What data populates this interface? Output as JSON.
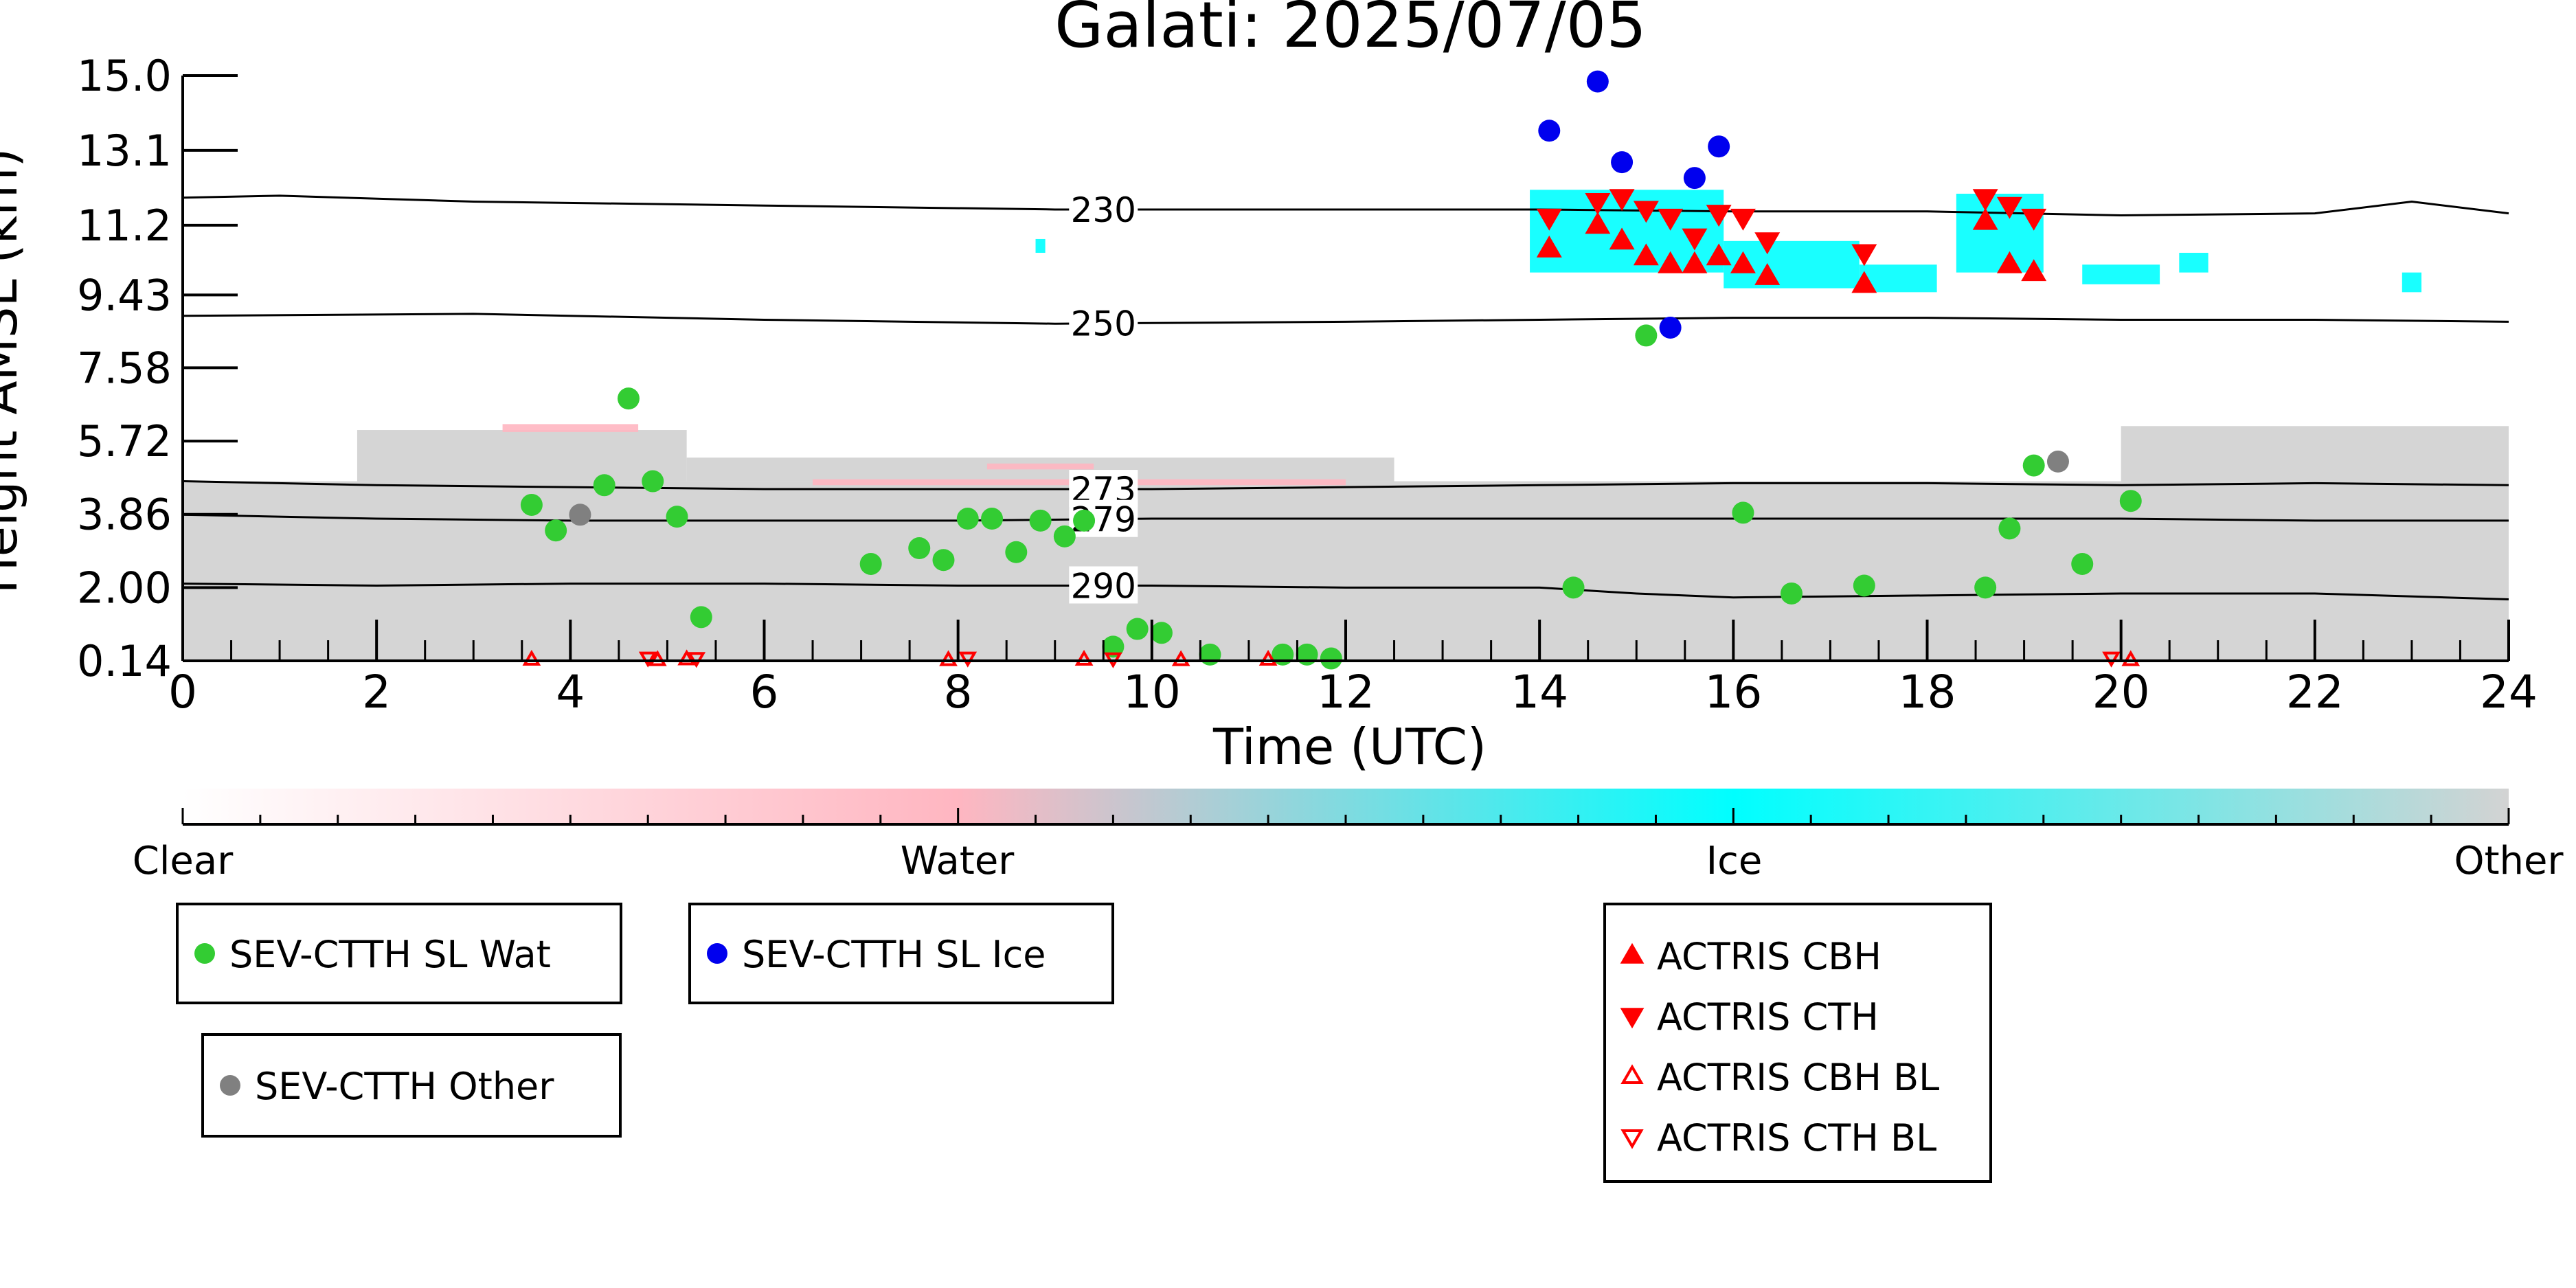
{
  "chart_data": {
    "type": "scatter",
    "title": "Galati: 2025/07/05",
    "xlabel": "Time (UTC)",
    "ylabel": "Height AMSL (km)",
    "xlim": [
      0,
      24
    ],
    "ylim": [
      0.14,
      15.0
    ],
    "x_ticks": [
      "0",
      "2",
      "4",
      "6",
      "8",
      "10",
      "12",
      "14",
      "16",
      "18",
      "20",
      "22",
      "24"
    ],
    "y_ticks": [
      {
        "value": 0.14,
        "label": "0.14"
      },
      {
        "value": 2.0,
        "label": "2.00"
      },
      {
        "value": 3.86,
        "label": "3.86"
      },
      {
        "value": 5.72,
        "label": "5.72"
      },
      {
        "value": 7.58,
        "label": "7.58"
      },
      {
        "value": 9.43,
        "label": "9.43"
      },
      {
        "value": 11.2,
        "label": "11.2"
      },
      {
        "value": 13.1,
        "label": "13.1"
      },
      {
        "value": 15.0,
        "label": "15.0"
      }
    ],
    "isotherms": [
      {
        "label": "230",
        "label_x": 9.5,
        "x": [
          0,
          1,
          3,
          6,
          9,
          12,
          14,
          16,
          18,
          20,
          22,
          23,
          24
        ],
        "y": [
          11.9,
          11.95,
          11.8,
          11.7,
          11.6,
          11.6,
          11.6,
          11.55,
          11.55,
          11.45,
          11.5,
          11.8,
          11.5
        ]
      },
      {
        "label": "250",
        "label_x": 9.5,
        "x": [
          0,
          3,
          6,
          9,
          12,
          14,
          16,
          18,
          20,
          22,
          24
        ],
        "y": [
          8.9,
          8.95,
          8.8,
          8.7,
          8.75,
          8.8,
          8.85,
          8.85,
          8.8,
          8.8,
          8.75
        ]
      },
      {
        "label": "273",
        "label_x": 9.5,
        "x": [
          0,
          2,
          4,
          6,
          8,
          10,
          12,
          14,
          16,
          18,
          20,
          22,
          24
        ],
        "y": [
          4.7,
          4.6,
          4.55,
          4.5,
          4.5,
          4.5,
          4.55,
          4.6,
          4.65,
          4.65,
          4.6,
          4.65,
          4.6
        ]
      },
      {
        "label": "279",
        "label_x": 9.5,
        "x": [
          0,
          2,
          4,
          6,
          8,
          10,
          12,
          14,
          16,
          18,
          20,
          22,
          24
        ],
        "y": [
          3.85,
          3.75,
          3.7,
          3.7,
          3.7,
          3.75,
          3.75,
          3.75,
          3.75,
          3.75,
          3.75,
          3.7,
          3.7
        ]
      },
      {
        "label": "290",
        "label_x": 9.5,
        "x": [
          0,
          2,
          4,
          6,
          8,
          10,
          12,
          14,
          15,
          16,
          18,
          20,
          22,
          24
        ],
        "y": [
          2.1,
          2.05,
          2.1,
          2.1,
          2.05,
          2.05,
          2.0,
          2.0,
          1.85,
          1.75,
          1.8,
          1.85,
          1.85,
          1.7
        ]
      }
    ],
    "background_regions": [
      {
        "class": "other",
        "x0": 0,
        "x1": 24,
        "y0": 0.14,
        "y1": 4.7
      },
      {
        "class": "other",
        "x0": 1.8,
        "x1": 5.2,
        "y0": 4.7,
        "y1": 6.0
      },
      {
        "class": "other",
        "x0": 5.2,
        "x1": 12.5,
        "y0": 4.7,
        "y1": 5.3
      },
      {
        "class": "other",
        "x0": 20,
        "x1": 24,
        "y0": 4.7,
        "y1": 6.1
      },
      {
        "class": "water",
        "x0": 3.3,
        "x1": 4.7,
        "y0": 5.95,
        "y1": 6.15
      },
      {
        "class": "water",
        "x0": 8.3,
        "x1": 9.4,
        "y0": 5.0,
        "y1": 5.15
      },
      {
        "class": "water",
        "x0": 6.5,
        "x1": 12.0,
        "y0": 4.6,
        "y1": 4.75
      },
      {
        "class": "ice",
        "x0": 13.9,
        "x1": 15.9,
        "y0": 10.0,
        "y1": 12.1
      },
      {
        "class": "ice",
        "x0": 15.9,
        "x1": 17.3,
        "y0": 9.6,
        "y1": 10.8
      },
      {
        "class": "ice",
        "x0": 17.3,
        "x1": 18.1,
        "y0": 9.5,
        "y1": 10.2
      },
      {
        "class": "ice",
        "x0": 18.3,
        "x1": 19.2,
        "y0": 10.0,
        "y1": 12.0
      },
      {
        "class": "ice",
        "x0": 19.6,
        "x1": 20.4,
        "y0": 9.7,
        "y1": 10.2
      },
      {
        "class": "ice",
        "x0": 20.6,
        "x1": 20.9,
        "y0": 10.0,
        "y1": 10.5
      },
      {
        "class": "ice",
        "x0": 22.9,
        "x1": 23.1,
        "y0": 9.5,
        "y1": 10.0
      },
      {
        "class": "ice",
        "x0": 8.8,
        "x1": 8.9,
        "y0": 10.5,
        "y1": 10.85
      }
    ],
    "colorbar": {
      "labels": [
        {
          "pos": 0.0,
          "text": "Clear"
        },
        {
          "pos": 0.333,
          "text": "Water"
        },
        {
          "pos": 0.667,
          "text": "Ice"
        },
        {
          "pos": 1.0,
          "text": "Other"
        }
      ],
      "stops": [
        {
          "pos": 0.0,
          "color": "#ffffff"
        },
        {
          "pos": 0.333,
          "color": "#ffb6c1"
        },
        {
          "pos": 0.667,
          "color": "#00ffff"
        },
        {
          "pos": 1.0,
          "color": "#d3d3d3"
        }
      ]
    },
    "series": [
      {
        "name": "SEV-CTTH SL Wat",
        "marker": "circle",
        "color": "#33cc33",
        "x": [
          3.6,
          3.85,
          4.35,
          4.6,
          4.85,
          5.1,
          5.35,
          7.1,
          7.6,
          7.85,
          8.1,
          8.35,
          8.6,
          8.85,
          9.1,
          9.3,
          9.6,
          9.85,
          10.1,
          10.6,
          11.35,
          11.6,
          11.85,
          14.35,
          15.1,
          16.1,
          16.6,
          17.35,
          18.6,
          18.85,
          19.1,
          19.6,
          20.1
        ],
        "y": [
          4.1,
          3.45,
          4.6,
          6.8,
          4.7,
          3.8,
          1.25,
          2.6,
          3.0,
          2.7,
          3.75,
          3.75,
          2.9,
          3.7,
          3.3,
          3.7,
          0.5,
          0.95,
          0.85,
          0.3,
          0.3,
          0.3,
          0.2,
          2.0,
          8.4,
          3.9,
          1.85,
          2.05,
          2.0,
          3.5,
          5.1,
          2.6,
          4.2
        ]
      },
      {
        "name": "SEV-CTTH SL Ice",
        "marker": "circle",
        "color": "#0000ee",
        "x": [
          14.1,
          14.6,
          14.85,
          15.35,
          15.6,
          15.85
        ],
        "y": [
          13.6,
          14.85,
          12.8,
          8.6,
          12.4,
          13.2
        ]
      },
      {
        "name": "SEV-CTTH Other",
        "marker": "circle",
        "color": "#808080",
        "x": [
          4.1,
          19.35
        ],
        "y": [
          3.85,
          5.2
        ]
      },
      {
        "name": "ACTRIS CBH",
        "marker": "triangle-up",
        "color": "#ff0000",
        "x": [
          14.1,
          14.6,
          14.85,
          15.1,
          15.35,
          15.6,
          15.85,
          16.1,
          16.35,
          17.35,
          18.6,
          18.85,
          19.1
        ],
        "y": [
          10.6,
          11.2,
          10.8,
          10.4,
          10.2,
          10.2,
          10.4,
          10.2,
          9.9,
          9.7,
          11.3,
          10.2,
          10.0
        ]
      },
      {
        "name": "ACTRIS CTH",
        "marker": "triangle-down",
        "color": "#ff0000",
        "x": [
          14.1,
          14.6,
          14.85,
          15.1,
          15.35,
          15.6,
          15.85,
          16.1,
          16.35,
          17.35,
          18.6,
          18.85,
          19.1
        ],
        "y": [
          11.4,
          11.8,
          11.9,
          11.6,
          11.4,
          10.9,
          11.5,
          11.4,
          10.8,
          10.5,
          11.9,
          11.7,
          11.4
        ]
      },
      {
        "name": "ACTRIS CBH BL",
        "marker": "triangle-up-open",
        "color": "#ff0000",
        "x": [
          3.6,
          4.9,
          5.2,
          7.9,
          9.3,
          10.3,
          11.2,
          20.1
        ],
        "y": [
          0.17,
          0.16,
          0.18,
          0.16,
          0.17,
          0.16,
          0.17,
          0.16
        ]
      },
      {
        "name": "ACTRIS CTH BL",
        "marker": "triangle-down-open",
        "color": "#ff0000",
        "x": [
          4.8,
          5.3,
          8.1,
          9.6,
          19.9
        ],
        "y": [
          0.22,
          0.21,
          0.22,
          0.2,
          0.22
        ]
      }
    ],
    "legends": [
      {
        "entries": [
          "SEV-CTTH SL Wat"
        ]
      },
      {
        "entries": [
          "SEV-CTTH SL Ice"
        ]
      },
      {
        "entries": [
          "SEV-CTTH Other"
        ]
      },
      {
        "entries": [
          "ACTRIS CBH",
          "ACTRIS CTH",
          "ACTRIS CBH BL",
          "ACTRIS CTH BL"
        ]
      }
    ]
  }
}
